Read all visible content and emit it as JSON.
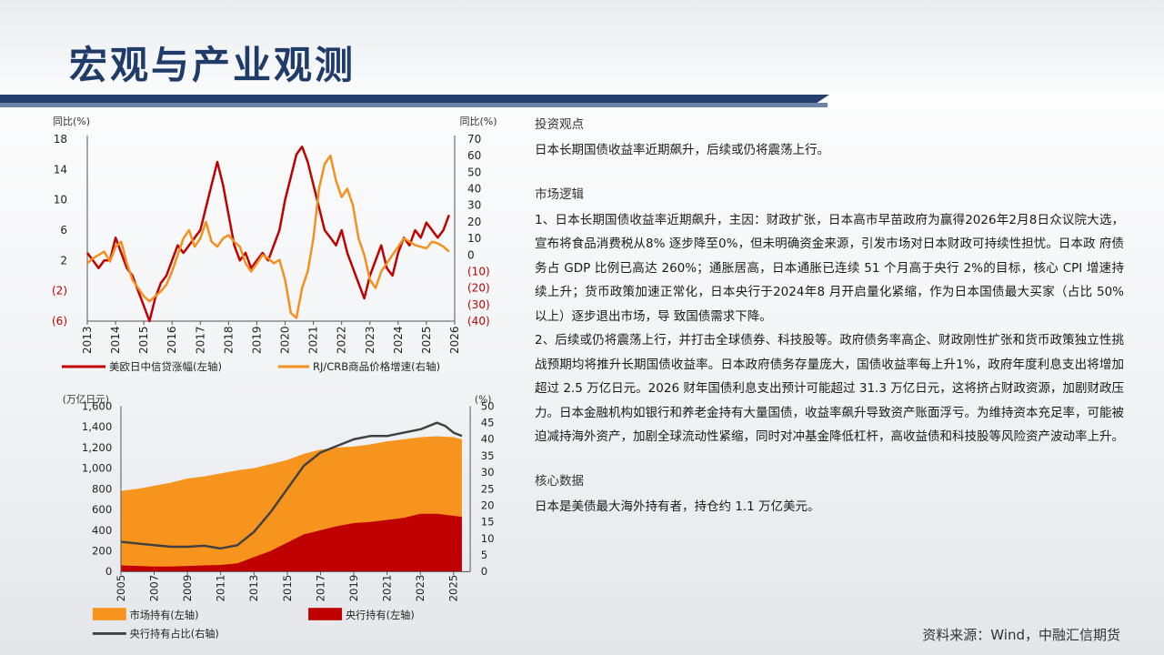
{
  "page": {
    "title": "宏观与产业观测",
    "source": "资料来源：Wind，中融汇信期货"
  },
  "sections": {
    "view_title": "投资观点",
    "view_text": "日本长期国债收益率近期飙升，后续或仍将震荡上行。",
    "logic_title": "市场逻辑",
    "logic_p1": "1、日本长期国债收益率近期飙升，主因：财政扩张，日本高市早苗政府为赢得2026年2月8日众议院大选，宣布将食品消费税从8% 逐步降至0%，但未明确资金来源，引发市场对日本财政可持续性担忧。日本政 府债务占 GDP 比例已高达 260%；通胀居高，日本通胀已连续 51 个月高于央行 2%的目标，核心 CPI 增速持续上升；货币政策加速正常化，日本央行于2024年8 月开启量化紧缩，作为日本国债最大买家（占比 50%以上）逐步退出市场，导 致国债需求下降。",
    "logic_p2": "2、后续或仍将震荡上行，并打击全球债券、科技股等。政府债务率高企、财政刚性扩张和货币政策独立性挑战预期均将推升长期国债收益率。日本政府债务存量庞大，国债收益率每上升1%，政府年度利息支出将增加超过 2.5 万亿日元。2026 财年国债利息支出预计可能超过 31.3 万亿日元，这将挤占财政资源，加剧财政压力。日本金融机构如银行和养老金持有大量国债，收益率飙升导致资产账面浮亏。为维持资本充足率，可能被迫减持海外资产，加剧全球流动性紧缩，同时对冲基金降低杠杆，高收益债和科技股等风险资产波动率上升。",
    "data_title": "核心数据",
    "data_text": "日本是美债最大海外持有者，持仓约 1.1 万亿美元。"
  },
  "chart_data": [
    {
      "type": "line",
      "left_unit": "同比(%)",
      "right_unit": "同比(%)",
      "left_ticks": [
        "18",
        "14",
        "10",
        "6",
        "2",
        "(2)",
        "(6)"
      ],
      "right_ticks": [
        "70",
        "60",
        "50",
        "40",
        "30",
        "20",
        "10",
        "0",
        "(10)",
        "(20)",
        "(30)",
        "(40)"
      ],
      "x_ticks": [
        "2013",
        "2014",
        "2015",
        "2016",
        "2017",
        "2018",
        "2019",
        "2020",
        "2021",
        "2022",
        "2023",
        "2024",
        "2025",
        "2026"
      ],
      "ylim_left": [
        -6,
        18
      ],
      "ylim_right": [
        -40,
        70
      ],
      "series": [
        {
          "name": "美欧日中信贷涨幅(左轴)",
          "color": "#c00000",
          "axis": "left",
          "x": [
            2013.0,
            2013.2,
            2013.4,
            2013.6,
            2013.8,
            2014.0,
            2014.2,
            2014.4,
            2014.6,
            2014.8,
            2015.0,
            2015.2,
            2015.4,
            2015.6,
            2015.8,
            2016.0,
            2016.2,
            2016.4,
            2016.6,
            2016.8,
            2017.0,
            2017.2,
            2017.4,
            2017.6,
            2017.8,
            2018.0,
            2018.2,
            2018.4,
            2018.6,
            2018.8,
            2019.0,
            2019.2,
            2019.4,
            2019.6,
            2019.8,
            2020.0,
            2020.2,
            2020.4,
            2020.6,
            2020.8,
            2021.0,
            2021.2,
            2021.4,
            2021.6,
            2021.8,
            2022.0,
            2022.2,
            2022.4,
            2022.6,
            2022.8,
            2023.0,
            2023.2,
            2023.4,
            2023.6,
            2023.8,
            2024.0,
            2024.2,
            2024.4,
            2024.6,
            2024.8,
            2025.0,
            2025.2,
            2025.4,
            2025.6,
            2025.8
          ],
          "y": [
            3,
            2,
            1,
            2,
            2,
            5,
            3,
            1,
            0,
            -2,
            -4,
            -6,
            -3,
            -1,
            0,
            2,
            4,
            3,
            4,
            5,
            6,
            9,
            12,
            15,
            12,
            8,
            4,
            2,
            3,
            1,
            2,
            3,
            2,
            4,
            6,
            10,
            13,
            16,
            17,
            15,
            12,
            9,
            6,
            5,
            4,
            6,
            3,
            1,
            -1,
            -3,
            0,
            2,
            4,
            1,
            0,
            3,
            5,
            4,
            6,
            5,
            7,
            6,
            5,
            6,
            8
          ]
        },
        {
          "name": "RJ/CRB商品价格增速(右轴)",
          "color": "#f4901e",
          "axis": "right",
          "x": [
            2013.0,
            2013.2,
            2013.4,
            2013.6,
            2013.8,
            2014.0,
            2014.2,
            2014.4,
            2014.6,
            2014.8,
            2015.0,
            2015.2,
            2015.4,
            2015.6,
            2015.8,
            2016.0,
            2016.2,
            2016.4,
            2016.6,
            2016.8,
            2017.0,
            2017.2,
            2017.4,
            2017.6,
            2017.8,
            2018.0,
            2018.2,
            2018.4,
            2018.6,
            2018.8,
            2019.0,
            2019.2,
            2019.4,
            2019.6,
            2019.8,
            2020.0,
            2020.2,
            2020.4,
            2020.6,
            2020.8,
            2021.0,
            2021.2,
            2021.4,
            2021.6,
            2021.8,
            2022.0,
            2022.2,
            2022.4,
            2022.6,
            2022.8,
            2023.0,
            2023.2,
            2023.4,
            2023.6,
            2023.8,
            2024.0,
            2024.2,
            2024.4,
            2024.6,
            2024.8,
            2025.0,
            2025.2,
            2025.4,
            2025.6,
            2025.8
          ],
          "y": [
            -5,
            -2,
            0,
            2,
            -4,
            5,
            8,
            -5,
            -15,
            -20,
            -25,
            -28,
            -25,
            -22,
            -18,
            -10,
            0,
            10,
            15,
            5,
            10,
            20,
            8,
            5,
            10,
            12,
            8,
            5,
            -5,
            -10,
            -5,
            0,
            -2,
            -5,
            -3,
            -15,
            -35,
            -38,
            -20,
            -10,
            10,
            40,
            55,
            60,
            45,
            35,
            40,
            30,
            10,
            0,
            -15,
            -20,
            -10,
            -5,
            0,
            5,
            10,
            8,
            6,
            5,
            4,
            8,
            7,
            5,
            2
          ]
        }
      ]
    },
    {
      "type": "area",
      "left_unit": "(万亿日元)",
      "right_unit": "(%)",
      "left_ticks": [
        "1,600",
        "1,400",
        "1,200",
        "1,000",
        "800",
        "600",
        "400",
        "200",
        "0"
      ],
      "right_ticks": [
        "50",
        "45",
        "40",
        "35",
        "30",
        "25",
        "20",
        "15",
        "10",
        "5",
        "0"
      ],
      "x_ticks": [
        "2005",
        "2007",
        "2009",
        "2011",
        "2013",
        "2015",
        "2017",
        "2019",
        "2021",
        "2023",
        "2025"
      ],
      "ylim_left": [
        0,
        1600
      ],
      "ylim_right": [
        0,
        50
      ],
      "series": [
        {
          "name": "市场持有(左轴)",
          "color": "#f7941d",
          "axis": "left",
          "x": [
            2005,
            2006,
            2007,
            2008,
            2009,
            2010,
            2011,
            2012,
            2013,
            2014,
            2015,
            2016,
            2017,
            2018,
            2019,
            2020,
            2021,
            2022,
            2023,
            2024,
            2025,
            2025.5
          ],
          "y": [
            780,
            800,
            830,
            860,
            900,
            920,
            950,
            980,
            1000,
            1040,
            1080,
            1140,
            1180,
            1200,
            1210,
            1230,
            1260,
            1280,
            1300,
            1310,
            1300,
            1280
          ]
        },
        {
          "name": "央行持有(左轴)",
          "color": "#c00000",
          "axis": "left",
          "x": [
            2005,
            2006,
            2007,
            2008,
            2009,
            2010,
            2011,
            2012,
            2013,
            2014,
            2015,
            2016,
            2017,
            2018,
            2019,
            2020,
            2021,
            2022,
            2023,
            2024,
            2025,
            2025.5
          ],
          "y": [
            60,
            55,
            50,
            50,
            55,
            60,
            65,
            80,
            140,
            200,
            280,
            360,
            400,
            440,
            470,
            480,
            500,
            520,
            560,
            560,
            540,
            530
          ]
        },
        {
          "name": "央行持有占比(右轴)",
          "color": "#404040",
          "axis": "right",
          "x": [
            2005,
            2006,
            2007,
            2008,
            2009,
            2010,
            2011,
            2012,
            2013,
            2014,
            2015,
            2016,
            2017,
            2018,
            2019,
            2020,
            2021,
            2022,
            2023,
            2024,
            2024.5,
            2025,
            2025.5
          ],
          "y": [
            9,
            8.5,
            8,
            7.5,
            7.5,
            7.8,
            7,
            8,
            12,
            18,
            25,
            32,
            36,
            38,
            40,
            41,
            41,
            42,
            43,
            45,
            44,
            42,
            41
          ]
        }
      ]
    }
  ]
}
